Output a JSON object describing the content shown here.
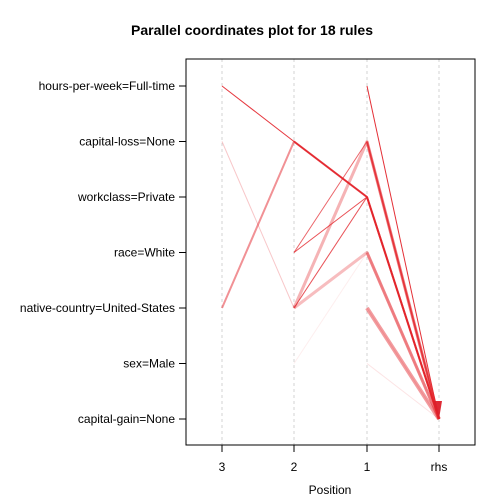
{
  "chart_data": {
    "type": "line",
    "title": "Parallel coordinates plot for 18 rules",
    "xlabel": "Position",
    "ylabel": "",
    "x_categories": [
      "3",
      "2",
      "1",
      "rhs"
    ],
    "y_categories": [
      "hours-per-week=Full-time",
      "capital-loss=None",
      "workclass=Private",
      "race=White",
      "native-country=United-States",
      "sex=Male",
      "capital-gain=None"
    ],
    "grid": true,
    "line_color": "#e3242b",
    "arrow_color": "#dc1f2a",
    "series": [
      {
        "path": [
          "capital-loss=None",
          "native-country=United-States",
          "workclass=Private",
          "capital-gain=None"
        ],
        "opacity": 0.25,
        "width": 1
      },
      {
        "path": [
          "native-country=United-States",
          "capital-loss=None",
          "workclass=Private",
          "capital-gain=None"
        ],
        "opacity": 0.5,
        "width": 2
      },
      {
        "path": [
          "hours-per-week=Full-time",
          "capital-loss=None",
          "workclass=Private",
          "capital-gain=None"
        ],
        "opacity": 0.9,
        "width": 1
      },
      {
        "path": [
          "race=White",
          "capital-loss=None",
          "capital-gain=None"
        ],
        "opacity": 0.7,
        "width": 1
      },
      {
        "path": [
          "race=White",
          "workclass=Private",
          "capital-gain=None"
        ],
        "opacity": 0.8,
        "width": 1
      },
      {
        "path": [
          "capital-loss=None",
          "workclass=Private",
          "capital-gain=None"
        ],
        "opacity": 0.75,
        "width": 2
      },
      {
        "path": [
          "native-country=United-States",
          "capital-loss=None",
          "capital-gain=None"
        ],
        "opacity": 0.35,
        "width": 3
      },
      {
        "path": [
          "native-country=United-States",
          "workclass=Private",
          "capital-gain=None"
        ],
        "opacity": 0.7,
        "width": 1
      },
      {
        "path": [
          "native-country=United-States",
          "race=White",
          "capital-gain=None"
        ],
        "opacity": 0.3,
        "width": 3
      },
      {
        "path": [
          "native-country=United-States",
          "capital-gain=None"
        ],
        "opacity": 0.15,
        "width": 1
      },
      {
        "path": [
          "sex=Male",
          "race=White",
          "capital-gain=None"
        ],
        "opacity": 0.08,
        "width": 1
      },
      {
        "path": [
          "capital-loss=None",
          "capital-gain=None"
        ],
        "opacity": 0.6,
        "width": 2
      },
      {
        "path": [
          "workclass=Private",
          "capital-gain=None"
        ],
        "opacity": 0.6,
        "width": 2
      },
      {
        "path": [
          "race=White",
          "capital-gain=None"
        ],
        "opacity": 0.4,
        "width": 3
      },
      {
        "path": [
          "hours-per-week=Full-time",
          "capital-gain=None"
        ],
        "opacity": 0.95,
        "width": 1
      },
      {
        "path": [
          "native-country=United-States",
          "capital-gain=None"
        ],
        "opacity": 0.45,
        "width": 4
      },
      {
        "path": [
          "sex=Male",
          "capital-gain=None"
        ],
        "opacity": 0.12,
        "width": 1
      },
      {
        "path": [
          "capital-loss=None",
          "capital-gain=None"
        ],
        "opacity": 0.3,
        "width": 3
      }
    ]
  }
}
